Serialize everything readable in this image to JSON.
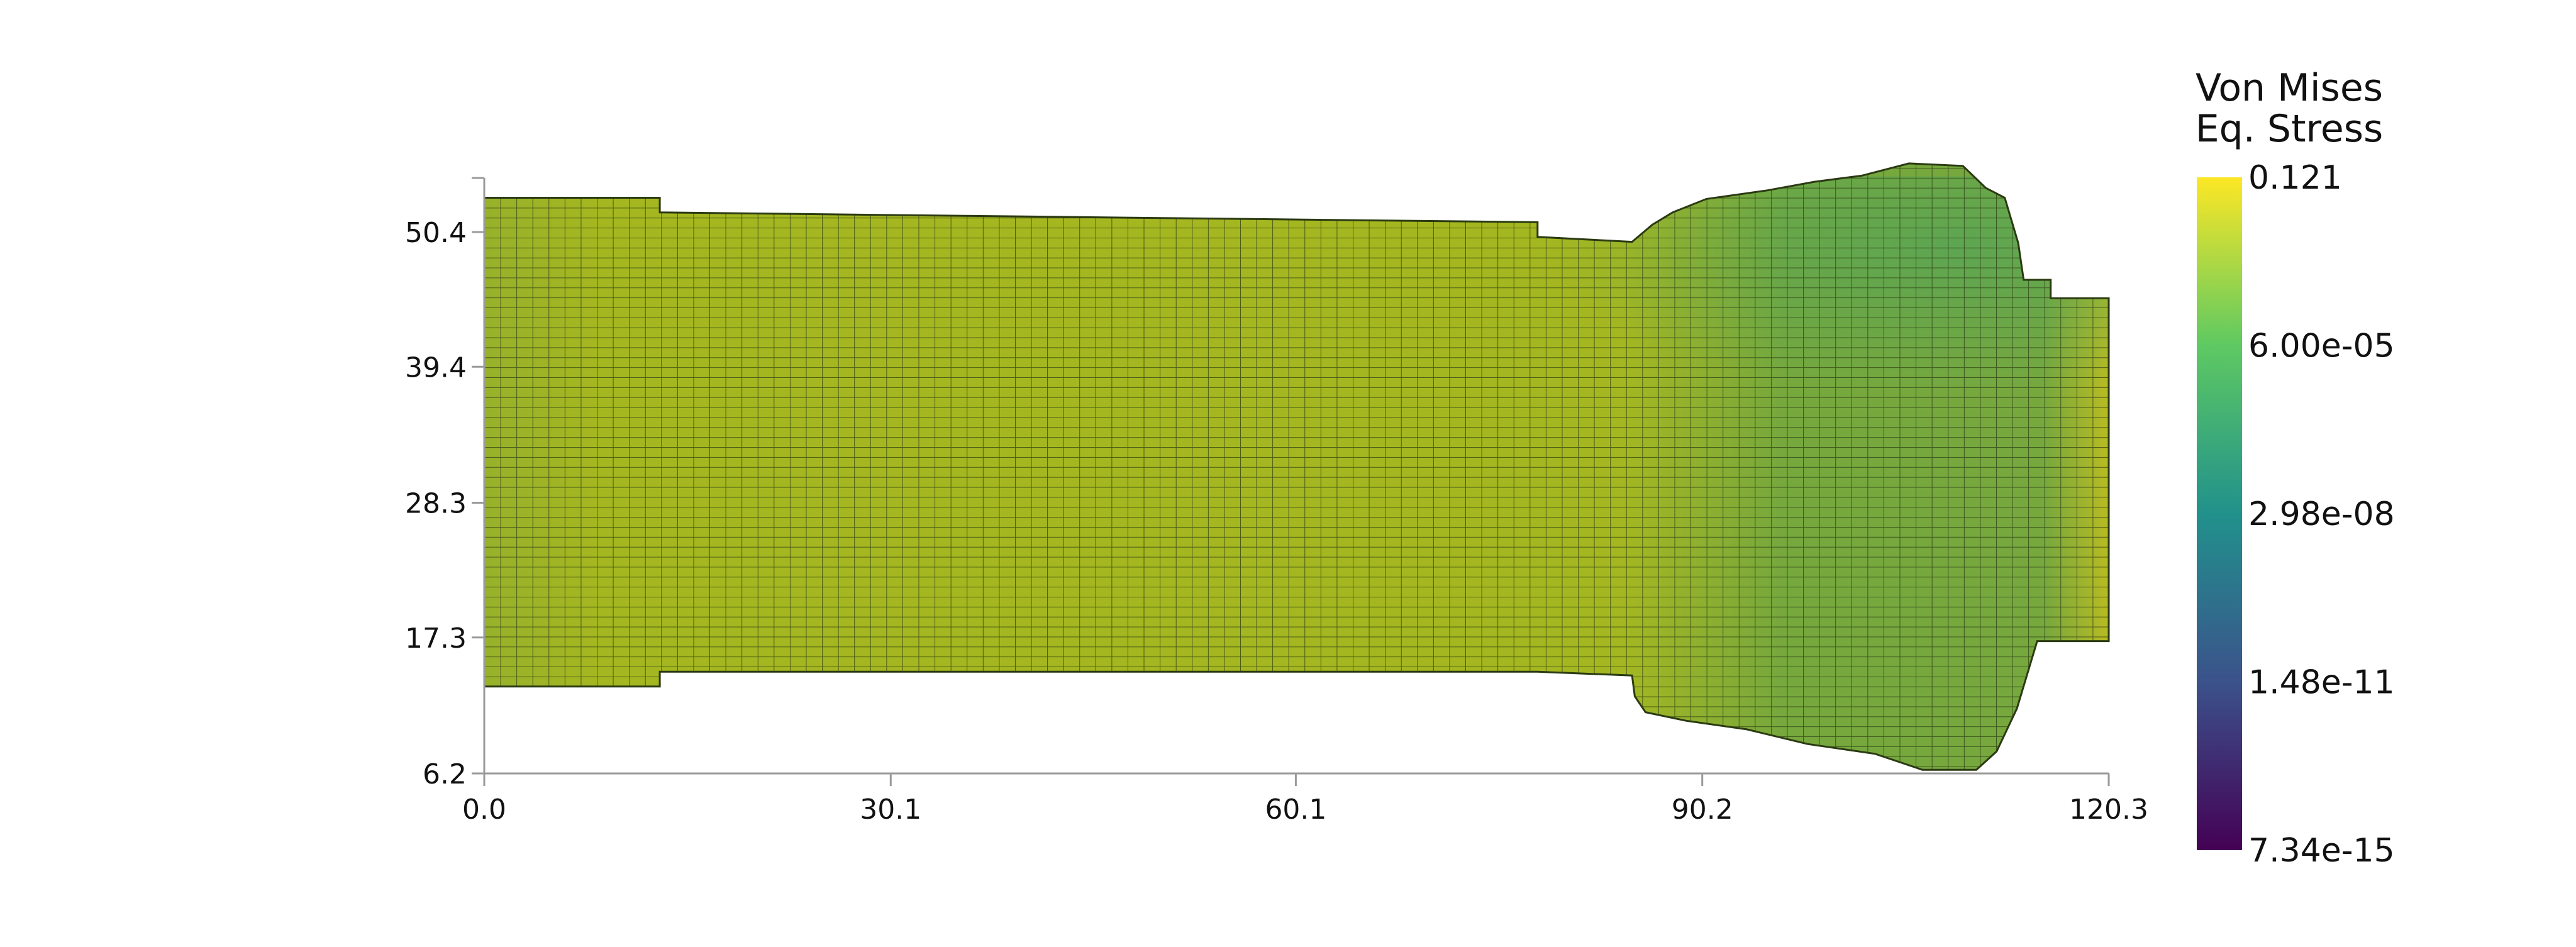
{
  "chart_data": {
    "type": "heatmap",
    "title": "",
    "xlabel": "",
    "ylabel": "",
    "xlim": [
      0.0,
      120.3
    ],
    "ylim": [
      6.2,
      55.0
    ],
    "x_ticks": [
      "0.0",
      "30.1",
      "60.1",
      "90.2",
      "120.3"
    ],
    "y_ticks": [
      "6.2",
      "17.3",
      "28.3",
      "39.4",
      "50.4"
    ],
    "grid": false,
    "field": "Von Mises Eq. Stress",
    "mesh": "quadrilateral elements",
    "colormap": {
      "name": "viridis",
      "scale": "log",
      "title_lines": [
        "Von Mises",
        "Eq. Stress"
      ],
      "labels": [
        "0.121",
        "6.00e-05",
        "2.98e-08",
        "1.48e-11",
        "7.34e-15"
      ],
      "min": 7.34e-15,
      "max": 0.121,
      "stops": [
        "#fde725",
        "#5ec962",
        "#21918c",
        "#3b528b",
        "#440154"
      ]
    },
    "shape_outline_top": [
      [
        0.0,
        53.2
      ],
      [
        13.0,
        53.2
      ],
      [
        13.0,
        52.0
      ],
      [
        78.0,
        51.2
      ],
      [
        78.0,
        50.0
      ],
      [
        85.0,
        49.6
      ],
      [
        86.5,
        51.0
      ],
      [
        88.0,
        52.0
      ],
      [
        90.5,
        53.1
      ],
      [
        95.0,
        53.8
      ],
      [
        98.5,
        54.5
      ],
      [
        102.0,
        55.0
      ],
      [
        105.5,
        56.0
      ],
      [
        109.5,
        55.8
      ],
      [
        111.2,
        54.0
      ],
      [
        112.6,
        53.2
      ],
      [
        113.6,
        49.5
      ],
      [
        114.0,
        46.5
      ],
      [
        116.0,
        46.5
      ],
      [
        116.0,
        45.0
      ],
      [
        120.3,
        45.0
      ]
    ],
    "shape_outline_bottom": [
      [
        0.0,
        13.3
      ],
      [
        13.0,
        13.3
      ],
      [
        13.0,
        14.5
      ],
      [
        78.0,
        14.5
      ],
      [
        85.0,
        14.2
      ],
      [
        85.2,
        12.5
      ],
      [
        86.0,
        11.2
      ],
      [
        89.0,
        10.5
      ],
      [
        93.5,
        9.8
      ],
      [
        98.0,
        8.6
      ],
      [
        103.0,
        7.8
      ],
      [
        106.5,
        6.5
      ],
      [
        110.5,
        6.5
      ],
      [
        112.0,
        8.0
      ],
      [
        113.5,
        11.5
      ],
      [
        115.0,
        17.0
      ],
      [
        120.3,
        17.0
      ]
    ],
    "mesh_divisions": {
      "x": 101,
      "y": 49
    },
    "colors": {
      "main": "#a5b720",
      "edge_region": "#76a83e",
      "right_end": "#b8bb22",
      "left_end": "#97b12b"
    }
  }
}
